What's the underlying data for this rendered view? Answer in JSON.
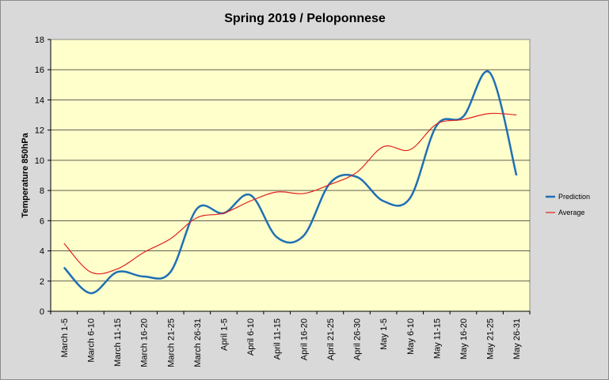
{
  "chart_data": {
    "type": "line",
    "title": "Spring 2019 / Peloponnese",
    "xlabel": "",
    "ylabel": "Temperature 850hPa",
    "ylim": [
      0,
      18
    ],
    "yticks": [
      0,
      2,
      4,
      6,
      8,
      10,
      12,
      14,
      16,
      18
    ],
    "grid": true,
    "legend_position": "right",
    "plot_background": "#ffffcc",
    "categories": [
      "March 1-5",
      "March 6-10",
      "March 11-15",
      "March 16-20",
      "March 21-25",
      "March 26-31",
      "April 1-5",
      "April 6-10",
      "April 11-15",
      "April 16-20",
      "April 21-25",
      "April 26-30",
      "May 1-5",
      "May 6-10",
      "May 11-15",
      "May 16-20",
      "May 21-25",
      "May 26-31"
    ],
    "series": [
      {
        "name": "Prediction",
        "color": "#1f6fb4",
        "values": [
          2.9,
          1.2,
          2.6,
          2.3,
          2.6,
          6.8,
          6.5,
          7.7,
          4.9,
          5.0,
          8.5,
          8.9,
          7.3,
          7.5,
          12.3,
          12.9,
          15.8,
          9.0
        ]
      },
      {
        "name": "Average",
        "color": "#e0201c",
        "values": [
          4.5,
          2.6,
          2.8,
          3.9,
          4.8,
          6.2,
          6.5,
          7.3,
          7.9,
          7.8,
          8.4,
          9.2,
          10.9,
          10.7,
          12.4,
          12.7,
          13.1,
          13.0
        ]
      }
    ]
  }
}
